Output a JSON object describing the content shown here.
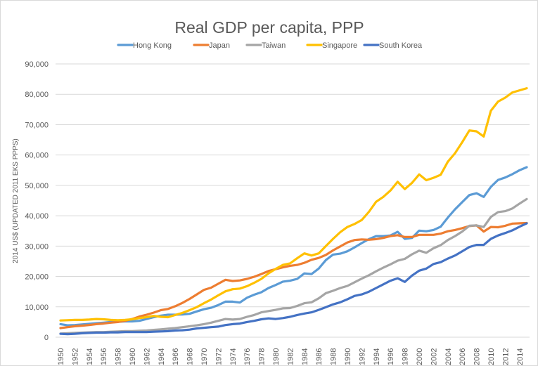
{
  "chart_data": {
    "type": "line",
    "title": "Real GDP per capita, PPP",
    "xlabel": "",
    "ylabel": "2014 US$ (UPDATED 2011 EKS PPPS)",
    "ylim": [
      0,
      90000
    ],
    "yticks": [
      "0",
      "10,000",
      "20,000",
      "30,000",
      "40,000",
      "50,000",
      "60,000",
      "70,000",
      "80,000",
      "90,000"
    ],
    "xlim": [
      1950,
      2015
    ],
    "xticks": [
      "1950",
      "1952",
      "1954",
      "1956",
      "1958",
      "1960",
      "1962",
      "1964",
      "1966",
      "1968",
      "1970",
      "1972",
      "1974",
      "1976",
      "1978",
      "1980",
      "1982",
      "1984",
      "1986",
      "1988",
      "1990",
      "1992",
      "1994",
      "1996",
      "1998",
      "2000",
      "2002",
      "2004",
      "2006",
      "2008",
      "2010",
      "2012",
      "2014"
    ],
    "grid": true,
    "legend": "top",
    "x": [
      1950,
      1951,
      1952,
      1953,
      1954,
      1955,
      1956,
      1957,
      1958,
      1959,
      1960,
      1961,
      1962,
      1963,
      1964,
      1965,
      1966,
      1967,
      1968,
      1969,
      1970,
      1971,
      1972,
      1973,
      1974,
      1975,
      1976,
      1977,
      1978,
      1979,
      1980,
      1981,
      1982,
      1983,
      1984,
      1985,
      1986,
      1987,
      1988,
      1989,
      1990,
      1991,
      1992,
      1993,
      1994,
      1995,
      1996,
      1997,
      1998,
      1999,
      2000,
      2001,
      2002,
      2003,
      2004,
      2005,
      2006,
      2007,
      2008,
      2009,
      2010,
      2011,
      2012,
      2013,
      2014,
      2015
    ],
    "series": [
      {
        "name": "Hong Kong",
        "color": "#5b9bd5",
        "values": [
          4300,
          3900,
          4000,
          4200,
          4400,
          4600,
          4800,
          5000,
          5100,
          5200,
          5200,
          5400,
          6000,
          6600,
          7100,
          7400,
          7400,
          7500,
          7700,
          8500,
          9200,
          9700,
          10600,
          11700,
          11700,
          11400,
          13000,
          14000,
          14800,
          16200,
          17200,
          18300,
          18600,
          19200,
          21000,
          20800,
          22600,
          25400,
          27200,
          27500,
          28300,
          29600,
          31000,
          32300,
          33300,
          33300,
          33500,
          34700,
          32400,
          32700,
          35100,
          34900,
          35300,
          36400,
          39400,
          42100,
          44500,
          46800,
          47400,
          46200,
          49500,
          51800,
          52600,
          53700,
          55000,
          56000
        ]
      },
      {
        "name": "Japan",
        "color": "#ed7d31",
        "values": [
          3000,
          3300,
          3600,
          3800,
          4000,
          4300,
          4500,
          4800,
          5000,
          5400,
          6000,
          6800,
          7400,
          8100,
          8900,
          9300,
          10200,
          11300,
          12600,
          14100,
          15600,
          16300,
          17600,
          18900,
          18500,
          18700,
          19200,
          19900,
          20800,
          21800,
          22400,
          23000,
          23500,
          23800,
          24500,
          25500,
          26100,
          27100,
          28600,
          29900,
          31200,
          32000,
          32200,
          32100,
          32300,
          32700,
          33300,
          33600,
          33000,
          33000,
          33700,
          33700,
          33700,
          34100,
          34900,
          35300,
          35900,
          36600,
          36800,
          34800,
          36300,
          36200,
          36700,
          37400,
          37500,
          37600
        ]
      },
      {
        "name": "Taiwan",
        "color": "#a5a5a5",
        "values": [
          1200,
          1300,
          1400,
          1500,
          1600,
          1700,
          1700,
          1800,
          1900,
          2000,
          2000,
          2100,
          2200,
          2400,
          2600,
          2800,
          3000,
          3300,
          3600,
          3900,
          4300,
          4800,
          5400,
          6000,
          5800,
          6000,
          6700,
          7300,
          8200,
          8600,
          9000,
          9500,
          9600,
          10300,
          11200,
          11500,
          12800,
          14500,
          15300,
          16200,
          16900,
          18100,
          19300,
          20400,
          21700,
          22900,
          24000,
          25200,
          25800,
          27300,
          28500,
          27800,
          29300,
          30300,
          32000,
          33300,
          34800,
          36700,
          36800,
          36300,
          39600,
          41200,
          41500,
          42400,
          44000,
          45500
        ]
      },
      {
        "name": "Singapore",
        "color": "#ffc000",
        "values": [
          5500,
          5600,
          5700,
          5700,
          5800,
          6000,
          5900,
          5700,
          5600,
          5700,
          5900,
          6300,
          6600,
          7000,
          6700,
          6600,
          7300,
          8000,
          8900,
          9900,
          11200,
          12400,
          13800,
          15100,
          15800,
          16000,
          16800,
          17900,
          19200,
          21000,
          22500,
          23800,
          24300,
          26000,
          27600,
          26900,
          27600,
          30000,
          32400,
          34600,
          36300,
          37300,
          38600,
          41300,
          44600,
          46200,
          48300,
          51200,
          48800,
          50800,
          53600,
          51700,
          52500,
          53500,
          57800,
          60600,
          64200,
          68100,
          67800,
          66100,
          74600,
          77600,
          78900,
          80600,
          81300,
          82000
        ]
      },
      {
        "name": "South Korea",
        "color": "#4472c4",
        "values": [
          1100,
          1000,
          1100,
          1300,
          1400,
          1500,
          1500,
          1600,
          1600,
          1700,
          1700,
          1700,
          1700,
          1800,
          1900,
          2000,
          2200,
          2300,
          2500,
          2900,
          3100,
          3300,
          3500,
          4000,
          4300,
          4500,
          5000,
          5400,
          5900,
          6200,
          6000,
          6300,
          6700,
          7300,
          7800,
          8200,
          9000,
          9900,
          10800,
          11500,
          12500,
          13600,
          14100,
          15000,
          16200,
          17400,
          18600,
          19400,
          18200,
          20300,
          21900,
          22600,
          24100,
          24700,
          25900,
          26900,
          28300,
          29700,
          30400,
          30400,
          32400,
          33500,
          34300,
          35200,
          36400,
          37500
        ]
      }
    ]
  }
}
